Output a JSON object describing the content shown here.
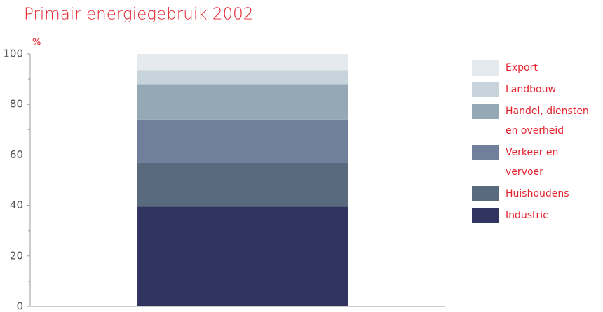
{
  "chart_data": {
    "type": "stacked_bar",
    "title": "Primair energiegebruik 2002",
    "y_unit": "%",
    "categories": [
      null
    ],
    "series": [
      {
        "name": "Export",
        "color": "#e4eaee",
        "values": [
          6.5
        ]
      },
      {
        "name": "Landbouw",
        "color": "#c8d4dc",
        "values": [
          5.5
        ]
      },
      {
        "name": "Handel, diensten en overheid",
        "color": "#95a8b6",
        "values": [
          14
        ]
      },
      {
        "name": "Verkeer en vervoer",
        "color": "#6f7f9c",
        "values": [
          17
        ]
      },
      {
        "name": "Huishoudens",
        "color": "#5a6a7e",
        "values": [
          17.5
        ]
      },
      {
        "name": "Industrie",
        "color": "#30345e",
        "values": [
          39.5
        ]
      }
    ],
    "ylim": [
      0,
      100
    ],
    "yticks": [
      0,
      20,
      40,
      60,
      80,
      100
    ],
    "grid": false,
    "legend": "right"
  }
}
